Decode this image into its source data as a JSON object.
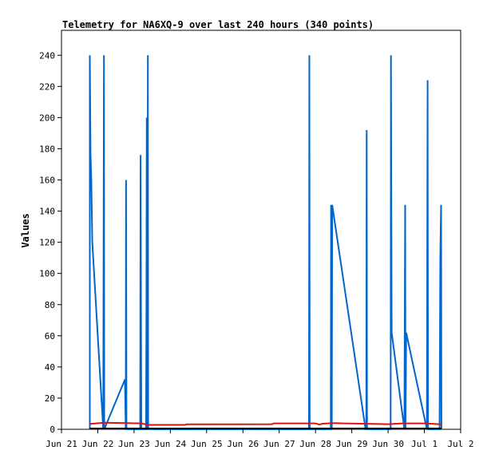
{
  "chart_data": {
    "type": "line",
    "title": "Telemetry for NA6XQ-9 over last 240 hours (340 points)",
    "xlabel": "",
    "ylabel": "Values",
    "x_ticks": [
      "Jun 21",
      "Jun 22",
      "Jun 23",
      "Jun 24",
      "Jun 25",
      "Jun 26",
      "Jun 27",
      "Jun 28",
      "Jun 29",
      "Jun 30",
      "Jul 1",
      "Jul 2"
    ],
    "xlim": [
      0,
      11
    ],
    "y_ticks": [
      0,
      20,
      40,
      60,
      80,
      100,
      120,
      140,
      160,
      180,
      200,
      220,
      240
    ],
    "ylim": [
      0,
      256
    ],
    "grid": false,
    "legend": "none",
    "series": [
      {
        "color": "#0066cc",
        "points": [
          [
            0.78,
            0
          ],
          [
            0.78,
            240
          ],
          [
            0.8,
            176
          ],
          [
            0.82,
            162
          ],
          [
            0.85,
            120
          ],
          [
            1.15,
            0
          ],
          [
            1.17,
            240
          ],
          [
            1.18,
            0
          ],
          [
            1.75,
            32
          ],
          [
            1.77,
            0
          ],
          [
            1.78,
            160
          ],
          [
            1.79,
            0
          ],
          [
            2.17,
            0
          ],
          [
            2.18,
            176
          ],
          [
            2.2,
            0
          ],
          [
            2.33,
            0
          ],
          [
            2.34,
            75
          ],
          [
            2.35,
            200
          ],
          [
            2.37,
            0
          ],
          [
            2.38,
            240
          ],
          [
            2.39,
            0
          ],
          [
            6.82,
            0
          ],
          [
            6.83,
            240
          ],
          [
            6.84,
            0
          ],
          [
            7.42,
            0
          ],
          [
            7.43,
            144
          ],
          [
            7.45,
            0
          ],
          [
            7.46,
            144
          ],
          [
            8.38,
            0
          ],
          [
            8.4,
            0
          ],
          [
            8.41,
            192
          ],
          [
            8.42,
            0
          ],
          [
            9.07,
            0
          ],
          [
            9.08,
            240
          ],
          [
            9.1,
            62
          ],
          [
            9.45,
            0
          ],
          [
            9.47,
            144
          ],
          [
            9.48,
            0
          ],
          [
            9.5,
            62
          ],
          [
            10.07,
            0
          ],
          [
            10.09,
            224
          ],
          [
            10.1,
            0
          ],
          [
            10.42,
            0
          ],
          [
            10.44,
            112
          ],
          [
            10.46,
            144
          ],
          [
            10.47,
            0
          ]
        ]
      },
      {
        "color": "#e01010",
        "points": [
          [
            0.78,
            3.5
          ],
          [
            1.2,
            4.2
          ],
          [
            1.8,
            4.0
          ],
          [
            2.2,
            3.8
          ],
          [
            2.4,
            2.8
          ],
          [
            3.4,
            2.8
          ],
          [
            3.45,
            3.2
          ],
          [
            5.8,
            3.3
          ],
          [
            5.85,
            3.8
          ],
          [
            7.0,
            3.8
          ],
          [
            7.1,
            3.0
          ],
          [
            7.2,
            3.6
          ],
          [
            7.5,
            4.0
          ],
          [
            7.8,
            3.8
          ],
          [
            8.6,
            3.5
          ],
          [
            9.0,
            3.3
          ],
          [
            9.4,
            3.8
          ],
          [
            10.0,
            3.8
          ],
          [
            10.47,
            3.2
          ]
        ]
      },
      {
        "color": "#000000",
        "points": [
          [
            0.78,
            0.5
          ],
          [
            10.47,
            0.5
          ]
        ]
      }
    ]
  }
}
